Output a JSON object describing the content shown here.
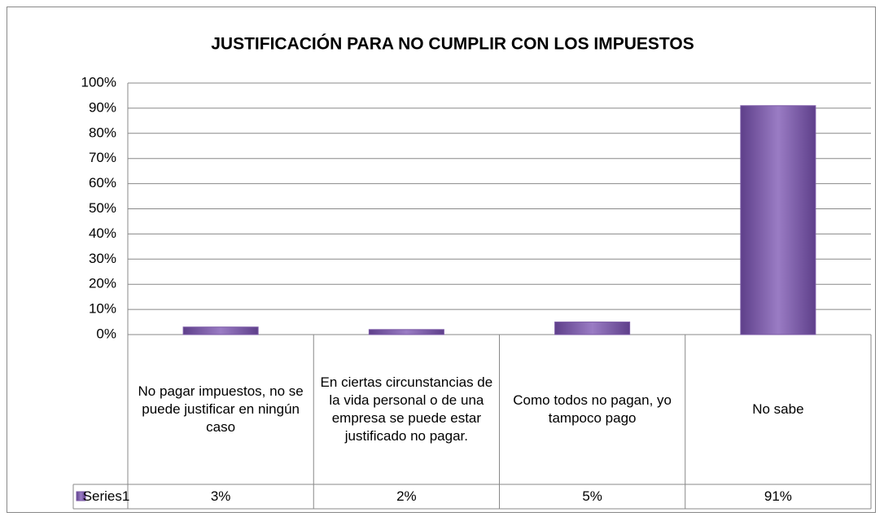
{
  "chart_data": {
    "type": "bar",
    "title": "JUSTIFICACIÓN PARA NO CUMPLIR CON LOS IMPUESTOS",
    "categories": [
      "No pagar impuestos, no se puede justificar en ningún caso",
      "En ciertas circunstancias de la vida personal o de una empresa se puede estar justificado no pagar.",
      "Como todos no pagan, yo tampoco pago",
      "No sabe"
    ],
    "series": [
      {
        "name": "Series1",
        "color": "#7b5aa6",
        "values": [
          3,
          2,
          5,
          91
        ],
        "value_labels": [
          "3%",
          "2%",
          "5%",
          "91%"
        ]
      }
    ],
    "ylim": [
      0,
      100
    ],
    "yticks": [
      {
        "value": 0,
        "label": "0%"
      },
      {
        "value": 10,
        "label": "10%"
      },
      {
        "value": 20,
        "label": "20%"
      },
      {
        "value": 30,
        "label": "30%"
      },
      {
        "value": 40,
        "label": "40%"
      },
      {
        "value": 50,
        "label": "50%"
      },
      {
        "value": 60,
        "label": "60%"
      },
      {
        "value": 70,
        "label": "70%"
      },
      {
        "value": 80,
        "label": "80%"
      },
      {
        "value": 90,
        "label": "90%"
      },
      {
        "value": 100,
        "label": "100%"
      }
    ],
    "grid": true
  }
}
